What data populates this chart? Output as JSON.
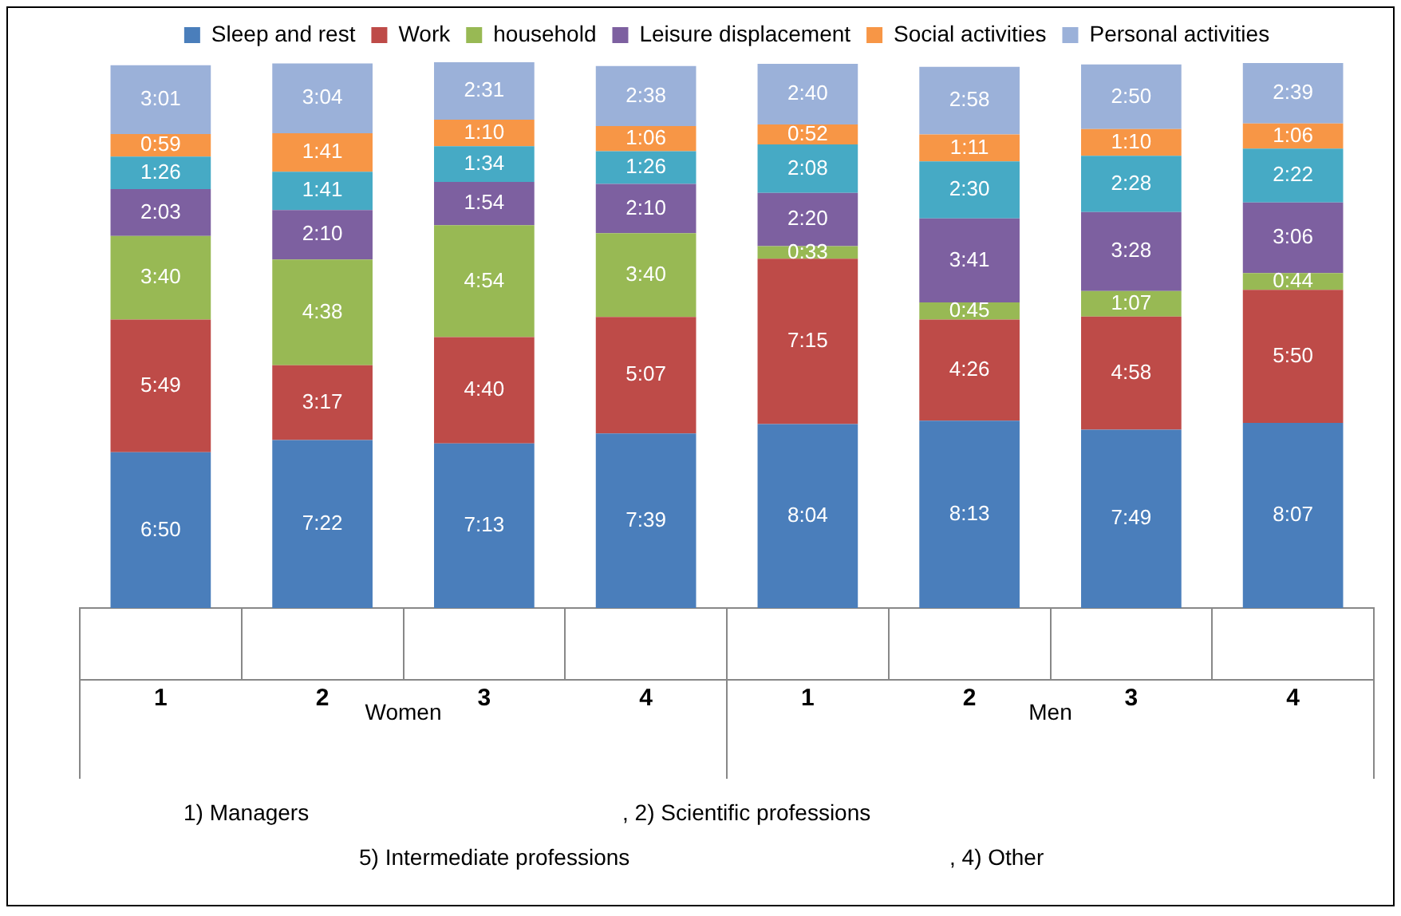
{
  "chart_data": {
    "type": "bar",
    "stacked": true,
    "legend": "top",
    "categories": [
      "1",
      "2",
      "3",
      "4",
      "1",
      "2",
      "3",
      "4"
    ],
    "series": [
      {
        "name": "Sleep and rest",
        "color": "#4a7ebb",
        "values": [
          410,
          442,
          433,
          459,
          484,
          493,
          469,
          487
        ],
        "value_labels": [
          "6:50",
          "7:22",
          "7:13",
          "7:39",
          "8:04",
          "8:13",
          "7:49",
          "8:07"
        ]
      },
      {
        "name": "Work",
        "color": "#be4b48",
        "values": [
          349,
          197,
          280,
          307,
          435,
          266,
          298,
          350
        ],
        "value_labels": [
          "5:49",
          "3:17",
          "4:40",
          "5:07",
          "7:15",
          "4:26",
          "4:58",
          "5:50"
        ]
      },
      {
        "name": "household",
        "color": "#98b954",
        "values": [
          220,
          278,
          294,
          220,
          33,
          45,
          67,
          44
        ],
        "value_labels": [
          "3:40",
          "4:38",
          "4:54",
          "3:40",
          "0:33",
          "0:45",
          "1:07",
          "0:44"
        ]
      },
      {
        "name": "Leisure displacement",
        "color": "#7d60a0",
        "values": [
          123,
          130,
          114,
          130,
          140,
          221,
          208,
          186
        ],
        "value_labels": [
          "2:03",
          "2:10",
          "1:54",
          "2:10",
          "2:20",
          "3:41",
          "3:28",
          "3:06"
        ]
      },
      {
        "color": "#46aac5",
        "values": [
          86,
          101,
          94,
          86,
          128,
          150,
          148,
          142
        ],
        "value_labels": [
          "1:26",
          "1:41",
          "1:34",
          "1:26",
          "2:08",
          "2:30",
          "2:28",
          "2:22"
        ]
      },
      {
        "name": "Social activities",
        "color": "#f79646",
        "values": [
          59,
          101,
          70,
          66,
          52,
          71,
          70,
          66
        ],
        "value_labels": [
          "0:59",
          "1:41",
          "1:10",
          "1:06",
          "0:52",
          "1:11",
          "1:10",
          "1:06"
        ]
      },
      {
        "name": "Personal activities",
        "color": "#9bb1d9",
        "values": [
          181,
          184,
          151,
          158,
          160,
          178,
          170,
          159
        ],
        "value_labels": [
          "3:01",
          "3:04",
          "2:31",
          "2:38",
          "2:40",
          "2:58",
          "2:50",
          "2:39"
        ]
      }
    ],
    "annotations": [
      "Women",
      "Men",
      "1)  Managers",
      ", 2)  Scientific professions",
      "5)  Intermediate professions",
      ", 4)  Other"
    ]
  }
}
